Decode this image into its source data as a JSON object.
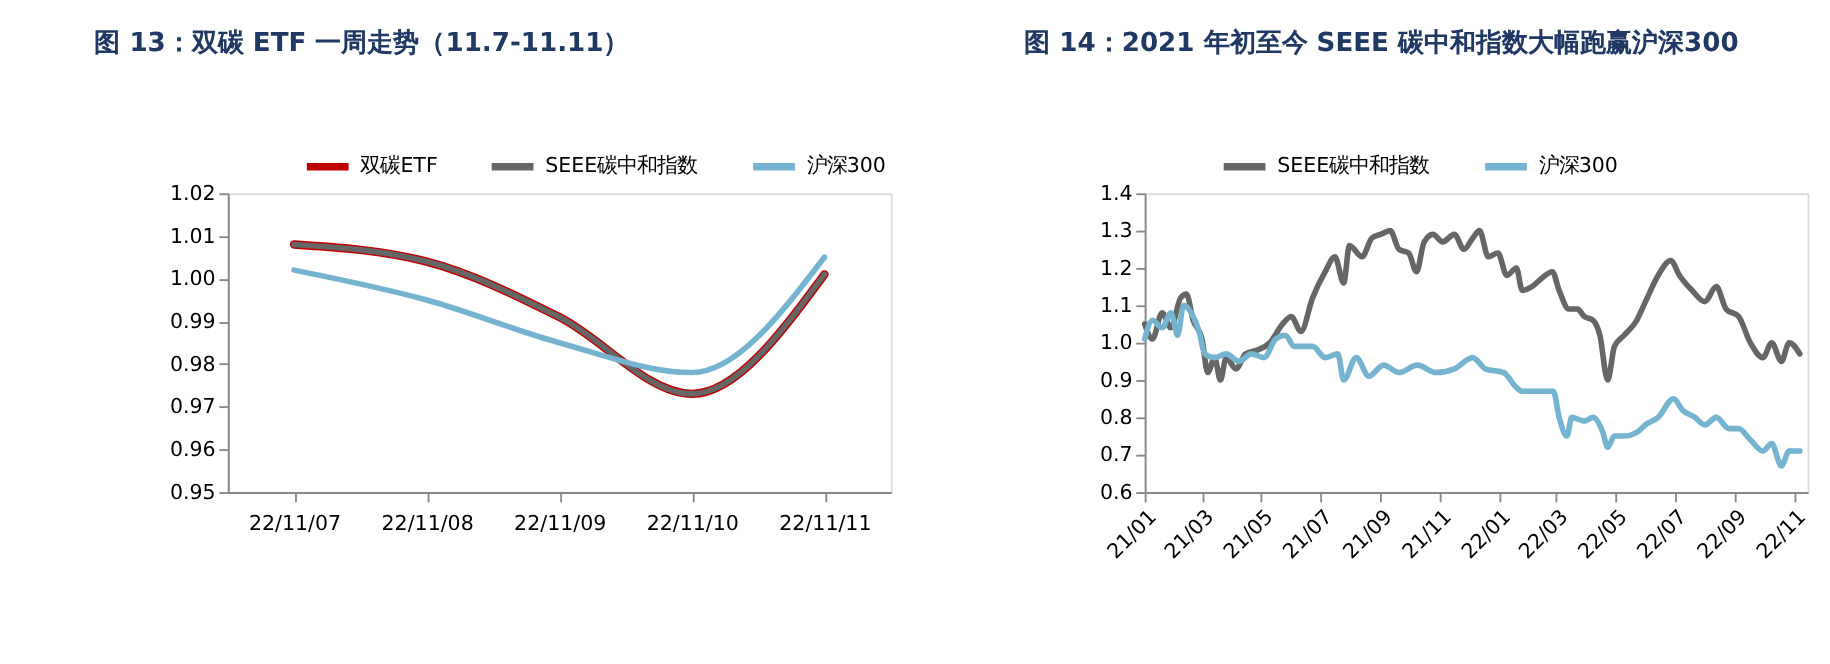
{
  "chart_data": [
    {
      "type": "line",
      "title": "图 13：双碳 ETF 一周走势（11.7-11.11）",
      "categories": [
        "22/11/07",
        "22/11/08",
        "22/11/09",
        "22/11/10",
        "22/11/11"
      ],
      "series": [
        {
          "name": "双碳ETF",
          "color": "#c00000",
          "values": [
            1.008,
            1.004,
            0.991,
            0.973,
            1.001
          ]
        },
        {
          "name": "SEEE碳中和指数",
          "color": "#666666",
          "values": [
            1.008,
            1.004,
            0.991,
            0.973,
            1.001
          ]
        },
        {
          "name": "沪深300",
          "color": "#74b4d0",
          "values": [
            1.002,
            0.995,
            0.985,
            0.978,
            1.005
          ]
        }
      ],
      "ylim": [
        0.95,
        1.02
      ],
      "yticks": [
        {
          "value": 0.95,
          "label": "0.95"
        },
        {
          "value": 0.96,
          "label": "0.96"
        },
        {
          "value": 0.97,
          "label": "0.97"
        },
        {
          "value": 0.98,
          "label": "0.98"
        },
        {
          "value": 0.99,
          "label": "0.99"
        },
        {
          "value": 1.0,
          "label": "1.00"
        },
        {
          "value": 1.01,
          "label": "1.01"
        },
        {
          "value": 1.02,
          "label": "1.02"
        }
      ],
      "grid": false,
      "legend": "top",
      "marker": "none",
      "line_style": "solid"
    },
    {
      "type": "line",
      "title": "图 14：2021 年初至今 SEEE 碳中和指数大幅跑赢沪深300",
      "series": [
        {
          "name": "SEEE碳中和指数",
          "color": "#666666",
          "x": [
            "2021-01-01",
            "2021-01-09",
            "2021-01-19",
            "2021-01-28",
            "2021-02-07",
            "2021-02-13",
            "2021-02-20",
            "2021-03-01",
            "2021-03-07",
            "2021-03-14",
            "2021-03-20",
            "2021-03-26",
            "2021-04-05",
            "2021-04-15",
            "2021-04-27",
            "2021-05-10",
            "2021-05-23",
            "2021-06-01",
            "2021-06-11",
            "2021-06-23",
            "2021-07-06",
            "2021-07-16",
            "2021-07-25",
            "2021-07-31",
            "2021-08-13",
            "2021-08-23",
            "2021-09-01",
            "2021-09-11",
            "2021-09-20",
            "2021-09-30",
            "2021-10-08",
            "2021-10-16",
            "2021-10-25",
            "2021-11-04",
            "2021-11-16",
            "2021-11-26",
            "2021-12-05",
            "2021-12-12",
            "2021-12-21",
            "2021-12-31",
            "2022-01-09",
            "2022-01-19",
            "2022-01-25",
            "2022-02-04",
            "2022-02-13",
            "2022-02-25",
            "2022-03-04",
            "2022-03-14",
            "2022-03-23",
            "2022-03-30",
            "2022-04-08",
            "2022-04-15",
            "2022-04-23",
            "2022-04-30",
            "2022-05-10",
            "2022-05-23",
            "2022-06-01",
            "2022-06-14",
            "2022-06-27",
            "2022-07-06",
            "2022-07-19",
            "2022-08-01",
            "2022-08-13",
            "2022-08-23",
            "2022-09-05",
            "2022-09-17",
            "2022-09-30",
            "2022-10-09",
            "2022-10-19",
            "2022-10-27",
            "2022-11-07"
          ],
          "values": [
            1.05,
            1.01,
            1.08,
            1.04,
            1.12,
            1.13,
            1.06,
            1.01,
            0.92,
            0.96,
            0.9,
            0.96,
            0.93,
            0.97,
            0.98,
            1.0,
            1.05,
            1.07,
            1.03,
            1.12,
            1.19,
            1.23,
            1.16,
            1.26,
            1.23,
            1.28,
            1.29,
            1.3,
            1.25,
            1.24,
            1.19,
            1.27,
            1.29,
            1.27,
            1.29,
            1.25,
            1.28,
            1.3,
            1.23,
            1.24,
            1.18,
            1.2,
            1.14,
            1.15,
            1.17,
            1.19,
            1.14,
            1.09,
            1.09,
            1.07,
            1.06,
            1.02,
            0.9,
            0.99,
            1.02,
            1.06,
            1.11,
            1.18,
            1.22,
            1.18,
            1.14,
            1.11,
            1.15,
            1.09,
            1.07,
            1.0,
            0.96,
            1.0,
            0.95,
            1.0,
            0.97
          ]
        },
        {
          "name": "沪深300",
          "color": "#74b4d0",
          "x": [
            "2021-01-01",
            "2021-01-09",
            "2021-01-19",
            "2021-01-28",
            "2021-02-04",
            "2021-02-10",
            "2021-02-18",
            "2021-02-26",
            "2021-03-04",
            "2021-03-14",
            "2021-03-26",
            "2021-04-08",
            "2021-04-21",
            "2021-05-04",
            "2021-05-16",
            "2021-05-26",
            "2021-06-04",
            "2021-06-23",
            "2021-07-06",
            "2021-07-19",
            "2021-07-25",
            "2021-08-07",
            "2021-08-20",
            "2021-09-04",
            "2021-09-20",
            "2021-10-09",
            "2021-10-28",
            "2021-11-16",
            "2021-12-05",
            "2021-12-18",
            "2022-01-06",
            "2022-01-19",
            "2022-01-25",
            "2022-02-13",
            "2022-02-26",
            "2022-03-04",
            "2022-03-12",
            "2022-03-17",
            "2022-03-30",
            "2022-04-08",
            "2022-04-18",
            "2022-04-23",
            "2022-04-30",
            "2022-05-10",
            "2022-05-23",
            "2022-06-01",
            "2022-06-14",
            "2022-06-30",
            "2022-07-09",
            "2022-07-22",
            "2022-08-01",
            "2022-08-13",
            "2022-08-26",
            "2022-09-05",
            "2022-09-17",
            "2022-09-30",
            "2022-10-09",
            "2022-10-19",
            "2022-10-27",
            "2022-11-07"
          ],
          "values": [
            1.01,
            1.06,
            1.04,
            1.08,
            1.02,
            1.1,
            1.08,
            1.03,
            0.97,
            0.96,
            0.97,
            0.95,
            0.97,
            0.96,
            1.01,
            1.02,
            0.99,
            0.99,
            0.96,
            0.97,
            0.9,
            0.96,
            0.91,
            0.94,
            0.92,
            0.94,
            0.92,
            0.93,
            0.96,
            0.93,
            0.92,
            0.88,
            0.87,
            0.87,
            0.87,
            0.8,
            0.75,
            0.8,
            0.79,
            0.8,
            0.76,
            0.72,
            0.75,
            0.75,
            0.76,
            0.78,
            0.8,
            0.85,
            0.82,
            0.8,
            0.78,
            0.8,
            0.77,
            0.77,
            0.74,
            0.71,
            0.73,
            0.67,
            0.71,
            0.71
          ]
        }
      ],
      "xlim": [
        "2021-01-01",
        "2022-11-15"
      ],
      "xticks": [
        {
          "value": "2021-01-01",
          "label": "21/01"
        },
        {
          "value": "2021-03-01",
          "label": "21/03"
        },
        {
          "value": "2021-05-01",
          "label": "21/05"
        },
        {
          "value": "2021-07-01",
          "label": "21/07"
        },
        {
          "value": "2021-09-01",
          "label": "21/09"
        },
        {
          "value": "2021-11-01",
          "label": "21/11"
        },
        {
          "value": "2022-01-01",
          "label": "22/01"
        },
        {
          "value": "2022-03-01",
          "label": "22/03"
        },
        {
          "value": "2022-05-01",
          "label": "22/05"
        },
        {
          "value": "2022-07-01",
          "label": "22/07"
        },
        {
          "value": "2022-09-01",
          "label": "22/09"
        },
        {
          "value": "2022-11-01",
          "label": "22/11"
        }
      ],
      "ylim": [
        0.6,
        1.4
      ],
      "yticks": [
        {
          "value": 0.6,
          "label": "0.6"
        },
        {
          "value": 0.7,
          "label": "0.7"
        },
        {
          "value": 0.8,
          "label": "0.8"
        },
        {
          "value": 0.9,
          "label": "0.9"
        },
        {
          "value": 1.0,
          "label": "1.0"
        },
        {
          "value": 1.1,
          "label": "1.1"
        },
        {
          "value": 1.2,
          "label": "1.2"
        },
        {
          "value": 1.3,
          "label": "1.3"
        },
        {
          "value": 1.4,
          "label": "1.4"
        }
      ],
      "grid": false,
      "legend": "top",
      "marker": "none",
      "line_style": "solid"
    }
  ]
}
